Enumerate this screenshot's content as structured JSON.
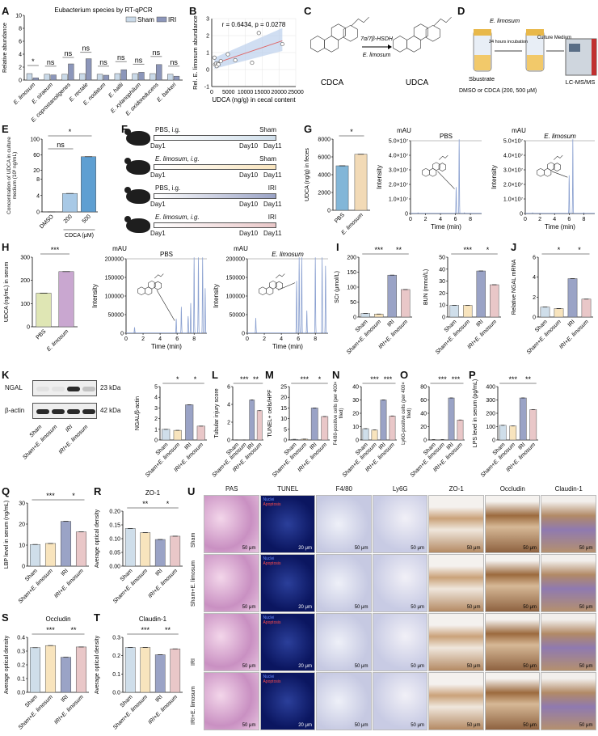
{
  "panels": [
    "A",
    "B",
    "C",
    "D",
    "E",
    "F",
    "G",
    "H",
    "I",
    "J",
    "K",
    "L",
    "M",
    "N",
    "O",
    "P",
    "Q",
    "R",
    "S",
    "T",
    "U"
  ],
  "colors": {
    "sham": "#cfdeea",
    "sham_e": "#f8e4bd",
    "iri": "#9aa3c6",
    "iri_e": "#e9c7c8",
    "a_sham": "#c9d9e8",
    "a_iri": "#8c96ba",
    "line": "#e06666",
    "band": "#bcd0ec",
    "chrom": "#8aa0d0"
  },
  "panel_c": {
    "left_label": "CDCA",
    "right_label": "UDCA",
    "enzyme": "7α/7β-HSDH",
    "organism": "E. limosum"
  },
  "panel_d": {
    "organism": "E. limosum",
    "incubation": "24 hours incubation",
    "medium": "Culture Medium",
    "substrate": "Sbustrate",
    "substrate_detail": "DMSO or CDCA (200, 500 μM)",
    "instrument": "LC-MS/MS"
  },
  "panel_f": {
    "groups": [
      {
        "treatment": "PBS,  i.g.",
        "group": "Sham"
      },
      {
        "treatment": "E. limosum,  i.g.",
        "group": "Sham"
      },
      {
        "treatment": "PBS,  i.g.",
        "group": "IRI"
      },
      {
        "treatment": "E. limosum,  i.g.",
        "group": "IRI"
      }
    ],
    "days": [
      "Day1",
      "Day10",
      "Day11"
    ]
  },
  "panel_k": {
    "bands": [
      {
        "name": "NGAL",
        "size": "23 kDa",
        "intensity": [
          0.05,
          0.05,
          0.9,
          0.2
        ]
      },
      {
        "name": "β-actin",
        "size": "42 kDa",
        "intensity": [
          0.9,
          0.9,
          0.9,
          0.9
        ]
      }
    ],
    "lanes": [
      "Sham",
      "Sham+E. limosum",
      "IRI",
      "IRI+E. limosum"
    ]
  },
  "panel_u": {
    "columns": [
      "PAS",
      "TUNEL",
      "F4/80",
      "Ly6G",
      "ZO-1",
      "Occludin",
      "Claudin-1"
    ],
    "rows": [
      "Sham",
      "Sham+E. limosum",
      "IRI",
      "IRI+E. limosum"
    ],
    "scales": [
      "50 μm",
      "20 μm",
      "50 μm",
      "50 μm",
      "50 μm",
      "50 μm",
      "50 μm"
    ],
    "tunel_legend": [
      "Nuclei",
      "Apoptosis"
    ]
  },
  "chart_data": [
    {
      "panel": "A",
      "type": "bar",
      "title": "Eubacterium species by RT-qPCR",
      "ylabel": "Relative abundance",
      "ylim": [
        0,
        10
      ],
      "yticks": [
        "0",
        "2",
        "4",
        "6",
        "8",
        "10"
      ],
      "legend": "top-right",
      "categories": [
        "E. limosum",
        "E. siraeum",
        "E. coprostanoligenes",
        "E. rectale",
        "E. nodatum",
        "E. hallii",
        "E. xylanophilum",
        "E. oxidoreducens",
        "E. barkeri"
      ],
      "series": [
        {
          "name": "Sham",
          "values": [
            1.0,
            0.9,
            0.9,
            1.0,
            0.9,
            1.0,
            1.0,
            1.0,
            0.9
          ]
        },
        {
          "name": "IRI",
          "values": [
            0.35,
            0.8,
            2.5,
            3.3,
            0.75,
            1.6,
            1.2,
            2.4,
            0.6
          ]
        }
      ],
      "significance": [
        {
          "from": 0,
          "to": 0,
          "label": "*"
        },
        {
          "from": 1,
          "to": 1,
          "label": "ns"
        },
        {
          "from": 2,
          "to": 2,
          "label": "ns"
        },
        {
          "from": 3,
          "to": 3,
          "label": "ns"
        },
        {
          "from": 4,
          "to": 4,
          "label": "ns"
        },
        {
          "from": 5,
          "to": 5,
          "label": "ns"
        },
        {
          "from": 6,
          "to": 6,
          "label": "ns"
        },
        {
          "from": 7,
          "to": 7,
          "label": "ns"
        },
        {
          "from": 8,
          "to": 8,
          "label": "ns"
        }
      ]
    },
    {
      "panel": "B",
      "type": "scatter",
      "xlabel": "UDCA (ng/g) in cecal content",
      "ylabel": "Rel. E. limosum abundance",
      "xlim": [
        0,
        25000
      ],
      "ylim": [
        -1,
        3
      ],
      "xticks": [
        "0",
        "5000",
        "10000",
        "15000",
        "20000",
        "25000"
      ],
      "yticks": [
        "-1",
        "0",
        "1",
        "2",
        "3"
      ],
      "annotation": "r = 0.6434, p = 0.0278",
      "points": [
        [
          800,
          0.7
        ],
        [
          1000,
          0.3
        ],
        [
          1300,
          0.35
        ],
        [
          1500,
          0.2
        ],
        [
          1800,
          0.35
        ],
        [
          2000,
          0.3
        ],
        [
          2700,
          0.5
        ],
        [
          4800,
          0.9
        ],
        [
          7000,
          0.55
        ],
        [
          12000,
          0.4
        ],
        [
          14000,
          2.15
        ],
        [
          21000,
          1.5
        ]
      ]
    },
    {
      "panel": "E",
      "type": "bar",
      "ylabel": "Concentration of UDCA in culture medium (10³ ng/mL)",
      "xlabel": "CDCA (μM)",
      "ylim": [
        0,
        100
      ],
      "ybreak": [
        8,
        10
      ],
      "yticks": [
        "0",
        "4",
        "8",
        "20",
        "60",
        "100"
      ],
      "categories": [
        "DMSO",
        "200",
        "500"
      ],
      "values": [
        0,
        4.5,
        55
      ],
      "colors": [
        "#cfe0f0",
        "#a8c9e6",
        "#5e9fd2"
      ],
      "significance": [
        {
          "from": 0,
          "to": 1,
          "label": "ns",
          "row": 1
        },
        {
          "from": 0,
          "to": 2,
          "label": "*",
          "row": 0
        }
      ]
    },
    {
      "panel": "G",
      "type": "bar",
      "ylabel": "UDCA (ng/g) in feces",
      "ylim": [
        0,
        8000
      ],
      "yticks": [
        "0",
        "2000",
        "4000",
        "6000",
        "8000"
      ],
      "categories": [
        "PBS",
        "E. limosum"
      ],
      "values": [
        5000,
        6300
      ],
      "colors": [
        "#82b6d8",
        "#f2dab6"
      ],
      "significance": [
        {
          "from": 0,
          "to": 1,
          "label": "*"
        }
      ]
    },
    {
      "panel": "G",
      "type": "line",
      "title": "PBS",
      "unit": "mAU",
      "xlabel": "Time (min)",
      "ylabel": "Intensity",
      "xlim": [
        0,
        9.5
      ],
      "ylim": [
        0,
        50000000.0
      ],
      "xticks": [
        "0",
        "2",
        "4",
        "6",
        "8"
      ],
      "yticks": [
        "0",
        "1.0×10⁷",
        "2.0×10⁷",
        "3.0×10⁷",
        "4.0×10⁷",
        "5.0×10⁷"
      ],
      "peaks": [
        [
          1.0,
          300000.0
        ],
        [
          6.1,
          18000000.0
        ],
        [
          6.5,
          52000000.0
        ],
        [
          7.2,
          300000.0
        ]
      ]
    },
    {
      "panel": "G",
      "type": "line",
      "title": "E. limosum",
      "unit": "mAU",
      "xlabel": "Time (min)",
      "ylabel": "Intensity",
      "xlim": [
        0,
        9.5
      ],
      "ylim": [
        0,
        50000000.0
      ],
      "xticks": [
        "0",
        "2",
        "4",
        "6",
        "8"
      ],
      "yticks": [
        "0",
        "1.0×10⁷",
        "2.0×10⁷",
        "3.0×10⁷",
        "4.0×10⁷",
        "5.0×10⁷"
      ],
      "peaks": [
        [
          1.0,
          300000.0
        ],
        [
          6.0,
          26000000.0
        ],
        [
          6.5,
          52000000.0
        ],
        [
          8.0,
          300000.0
        ]
      ]
    },
    {
      "panel": "H",
      "type": "bar",
      "ylabel": "UDCA (ng/mL) in serum",
      "ylim": [
        0,
        300
      ],
      "yticks": [
        "0",
        "100",
        "200",
        "300"
      ],
      "categories": [
        "PBS",
        "E. limosum"
      ],
      "values": [
        145,
        238
      ],
      "colors": [
        "#dfe6b4",
        "#c9a7d0"
      ],
      "significance": [
        {
          "from": 0,
          "to": 1,
          "label": "***"
        }
      ]
    },
    {
      "panel": "H",
      "type": "line",
      "title": "PBS",
      "unit": "mAU",
      "xlabel": "Time (min)",
      "ylabel": "Intensity",
      "xlim": [
        0,
        9.5
      ],
      "ylim": [
        0,
        200000
      ],
      "xticks": [
        "0",
        "2",
        "4",
        "6",
        "8"
      ],
      "yticks": [
        "0",
        "50000",
        "100000",
        "150000",
        "200000"
      ],
      "peaks": [
        [
          1.0,
          15000
        ],
        [
          5.9,
          38000
        ],
        [
          6.5,
          70000
        ],
        [
          7.3,
          45000
        ],
        [
          7.6,
          80000
        ],
        [
          8.0,
          205000
        ],
        [
          8.5,
          205000
        ],
        [
          9.0,
          205000
        ],
        [
          9.3,
          120000
        ]
      ]
    },
    {
      "panel": "H",
      "type": "line",
      "title": "E. limosum",
      "unit": "mAU",
      "xlabel": "Time (min)",
      "ylabel": "Intensity",
      "xlim": [
        0,
        9.5
      ],
      "ylim": [
        0,
        200000
      ],
      "xticks": [
        "0",
        "2",
        "4",
        "6",
        "8"
      ],
      "yticks": [
        "0",
        "50000",
        "100000",
        "150000",
        "200000"
      ],
      "peaks": [
        [
          1.0,
          40000
        ],
        [
          5.8,
          140000
        ],
        [
          6.1,
          205000
        ],
        [
          6.4,
          205000
        ],
        [
          7.0,
          60000
        ],
        [
          8.0,
          205000
        ],
        [
          8.8,
          205000
        ],
        [
          9.2,
          180000
        ]
      ]
    },
    {
      "panel": "I",
      "type": "bar",
      "ylabel": "SCr (μmol/L)",
      "ylim": [
        0,
        200
      ],
      "yticks": [
        "0",
        "50",
        "100",
        "150",
        "200"
      ],
      "categories": [
        "Sham",
        "Sham+E. limosum",
        "IRI",
        "IRI+E. limosum"
      ],
      "values": [
        12,
        10,
        140,
        92
      ],
      "significance": [
        {
          "from": 0,
          "to": 2,
          "label": "***"
        },
        {
          "from": 2,
          "to": 3,
          "label": "**"
        }
      ]
    },
    {
      "panel": "I",
      "type": "bar",
      "ylabel": "BUN (mmol/L)",
      "ylim": [
        0,
        50
      ],
      "yticks": [
        "0",
        "10",
        "20",
        "30",
        "40",
        "50"
      ],
      "categories": [
        "Sham",
        "Sham+E. limosum",
        "IRI",
        "IRI+E. limosum"
      ],
      "values": [
        9.8,
        9.8,
        38.5,
        27
      ],
      "significance": [
        {
          "from": 0,
          "to": 2,
          "label": "***"
        },
        {
          "from": 2,
          "to": 3,
          "label": "*"
        }
      ]
    },
    {
      "panel": "J",
      "type": "bar",
      "ylabel": "Relative NGAL mRNA",
      "ylim": [
        0,
        6
      ],
      "yticks": [
        "0",
        "2",
        "4",
        "6"
      ],
      "categories": [
        "Sham",
        "Sham+E. limosum",
        "IRI",
        "IRI+E. limosum"
      ],
      "values": [
        1.0,
        0.85,
        3.85,
        1.8
      ],
      "significance": [
        {
          "from": 0,
          "to": 2,
          "label": "*"
        },
        {
          "from": 2,
          "to": 3,
          "label": "*"
        }
      ]
    },
    {
      "panel": "K",
      "type": "bar",
      "ylabel": "NGAL/β-actin",
      "ylim": [
        0,
        5
      ],
      "yticks": [
        "0",
        "1",
        "2",
        "3",
        "4",
        "5"
      ],
      "categories": [
        "Sham",
        "Sham+E. limosum",
        "IRI",
        "IRI+E. limosum"
      ],
      "values": [
        1.0,
        0.9,
        3.3,
        1.3
      ],
      "significance": [
        {
          "from": 0,
          "to": 2,
          "label": "*"
        },
        {
          "from": 2,
          "to": 3,
          "label": "*"
        }
      ]
    },
    {
      "panel": "L",
      "type": "bar",
      "ylabel": "Tubular injury score",
      "ylim": [
        0,
        6
      ],
      "yticks": [
        "0",
        "2",
        "4",
        "6"
      ],
      "categories": [
        "Sham",
        "Sham+E. limosum",
        "IRI",
        "IRI+E. limosum"
      ],
      "values": [
        0,
        0,
        4.5,
        3.3
      ],
      "significance": [
        {
          "from": 0,
          "to": 2,
          "label": "***"
        },
        {
          "from": 2,
          "to": 3,
          "label": "**"
        }
      ]
    },
    {
      "panel": "M",
      "type": "bar",
      "ylabel": "TUNEL+ cells/HPF",
      "ylim": [
        0,
        25
      ],
      "yticks": [
        "0",
        "5",
        "10",
        "15",
        "20",
        "25"
      ],
      "categories": [
        "Sham",
        "Sham+E. limosum",
        "IRI",
        "IRI+E. limosum"
      ],
      "values": [
        0.3,
        0.4,
        15,
        11
      ],
      "significance": [
        {
          "from": 0,
          "to": 2,
          "label": "***"
        },
        {
          "from": 2,
          "to": 3,
          "label": "*"
        }
      ]
    },
    {
      "panel": "N",
      "type": "bar",
      "ylabel": "F4/80-positive cells (per 400× filed)",
      "ylim": [
        0,
        40
      ],
      "yticks": [
        "0",
        "10",
        "20",
        "30",
        "40"
      ],
      "categories": [
        "Sham",
        "Sham+E. limosum",
        "IRI",
        "IRI+E. limosum"
      ],
      "values": [
        8.5,
        7.5,
        30,
        18
      ],
      "significance": [
        {
          "from": 0,
          "to": 2,
          "label": "***"
        },
        {
          "from": 2,
          "to": 3,
          "label": "***"
        }
      ]
    },
    {
      "panel": "O",
      "type": "bar",
      "ylabel": "Ly6G-positive cells (per 400× filed)",
      "ylim": [
        0,
        80
      ],
      "yticks": [
        "0",
        "20",
        "40",
        "60",
        "80"
      ],
      "categories": [
        "Sham",
        "Sham+E. limosum",
        "IRI",
        "IRI+E. limosum"
      ],
      "values": [
        0.5,
        0.5,
        63,
        30
      ],
      "significance": [
        {
          "from": 0,
          "to": 2,
          "label": "***"
        },
        {
          "from": 2,
          "to": 3,
          "label": "***"
        }
      ]
    },
    {
      "panel": "P",
      "type": "bar",
      "ylabel": "LPS level in serum (pg/mL)",
      "ylim": [
        0,
        400
      ],
      "yticks": [
        "0",
        "100",
        "200",
        "300",
        "400"
      ],
      "categories": [
        "Sham",
        "Sham+E. limosum",
        "IRI",
        "IRI+E. limosum"
      ],
      "values": [
        110,
        105,
        315,
        228
      ],
      "significance": [
        {
          "from": 0,
          "to": 2,
          "label": "***"
        },
        {
          "from": 2,
          "to": 3,
          "label": "**"
        }
      ]
    },
    {
      "panel": "Q",
      "type": "bar",
      "ylabel": "LBP level in serum (ng/mL)",
      "ylim": [
        0,
        30
      ],
      "yticks": [
        "0",
        "10",
        "20",
        "30"
      ],
      "categories": [
        "Sham",
        "Sham+E. limosum",
        "IRI",
        "IRI+E. limosum"
      ],
      "values": [
        10.3,
        10.8,
        21.3,
        16.3
      ],
      "significance": [
        {
          "from": 0,
          "to": 2,
          "label": "***"
        },
        {
          "from": 2,
          "to": 3,
          "label": "*"
        }
      ]
    },
    {
      "panel": "R",
      "type": "bar",
      "title": "ZO-1",
      "ylabel": "Average optical density",
      "ylim": [
        0,
        0.2
      ],
      "yticks": [
        "0.00",
        "0.05",
        "0.10",
        "0.15",
        "0.20"
      ],
      "categories": [
        "Sham",
        "Sham+E. limosum",
        "IRI",
        "IRI+E. limosum"
      ],
      "values": [
        0.137,
        0.122,
        0.097,
        0.109
      ],
      "significance": [
        {
          "from": 0,
          "to": 2,
          "label": "**"
        },
        {
          "from": 2,
          "to": 3,
          "label": "*"
        }
      ]
    },
    {
      "panel": "S",
      "type": "bar",
      "title": "Occludin",
      "ylabel": "Average optical density",
      "ylim": [
        0,
        0.4
      ],
      "yticks": [
        "0.0",
        "0.1",
        "0.2",
        "0.3",
        "0.4"
      ],
      "categories": [
        "Sham",
        "Sham+E. limosum",
        "IRI",
        "IRI+E. limosum"
      ],
      "values": [
        0.325,
        0.34,
        0.255,
        0.33
      ],
      "significance": [
        {
          "from": 0,
          "to": 2,
          "label": "***"
        },
        {
          "from": 2,
          "to": 3,
          "label": "**"
        }
      ]
    },
    {
      "panel": "T",
      "type": "bar",
      "title": "Claudin-1",
      "ylabel": "Average optical density",
      "ylim": [
        0,
        0.3
      ],
      "yticks": [
        "0.0",
        "0.1",
        "0.2",
        "0.3"
      ],
      "categories": [
        "Sham",
        "Sham+E. limosum",
        "IRI",
        "IRI+E. limosum"
      ],
      "values": [
        0.245,
        0.245,
        0.205,
        0.237
      ],
      "significance": [
        {
          "from": 0,
          "to": 2,
          "label": "***"
        },
        {
          "from": 2,
          "to": 3,
          "label": "**"
        }
      ]
    }
  ]
}
